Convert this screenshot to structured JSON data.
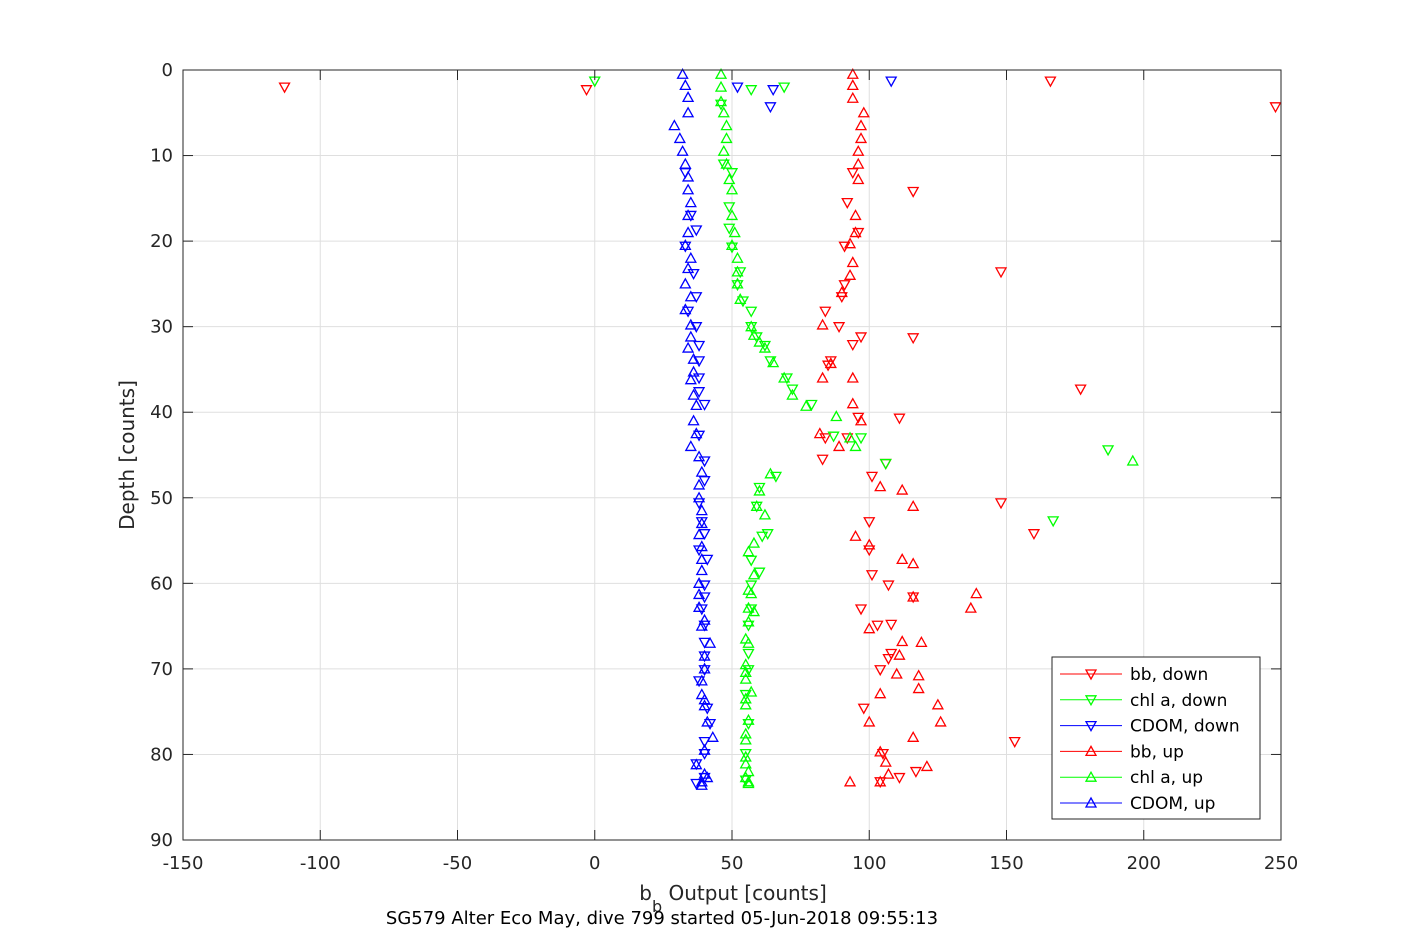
{
  "chart_data": {
    "type": "scatter",
    "xlabel": "b",
    "xlabel_sub": "b",
    "xlabel_rest": " Output [counts]",
    "ylabel": "Depth [counts]",
    "caption": "SG579 Alter Eco May, dive 799 started 05-Jun-2018 09:55:13",
    "xlim": [
      -150,
      250
    ],
    "ylim": [
      0,
      90
    ],
    "y_reversed": true,
    "grid": true,
    "legend_position": "bottom-right",
    "x_ticks": [
      "-150",
      "-100",
      "-50",
      "0",
      "50",
      "100",
      "150",
      "200",
      "250"
    ],
    "y_ticks": [
      "0",
      "10",
      "20",
      "30",
      "40",
      "50",
      "60",
      "70",
      "80",
      "90"
    ],
    "series": [
      {
        "name": "bb, down",
        "color": "#ff0000",
        "marker": "triangle-down",
        "points": [
          [
            -113,
            2
          ],
          [
            -3,
            2.3
          ],
          [
            166,
            1.3
          ],
          [
            248,
            4.3
          ],
          [
            94,
            12
          ],
          [
            116,
            14.2
          ],
          [
            92,
            15.5
          ],
          [
            96,
            19
          ],
          [
            91,
            20.6
          ],
          [
            148,
            23.6
          ],
          [
            91,
            25.1
          ],
          [
            90,
            26.5
          ],
          [
            84,
            28.2
          ],
          [
            89,
            30
          ],
          [
            97,
            31.2
          ],
          [
            94,
            32.1
          ],
          [
            86,
            34
          ],
          [
            85,
            34.5
          ],
          [
            116,
            31.3
          ],
          [
            177,
            37.3
          ],
          [
            96,
            40.6
          ],
          [
            111,
            40.7
          ],
          [
            84,
            43
          ],
          [
            92,
            43
          ],
          [
            83,
            45.5
          ],
          [
            106,
            46
          ],
          [
            101,
            47.5
          ],
          [
            148,
            50.6
          ],
          [
            100,
            52.8
          ],
          [
            160,
            54.2
          ],
          [
            100,
            56.1
          ],
          [
            101,
            59
          ],
          [
            107,
            60.2
          ],
          [
            116,
            61.6
          ],
          [
            97,
            63
          ],
          [
            108,
            64.8
          ],
          [
            103,
            64.9
          ],
          [
            107,
            68.8
          ],
          [
            108,
            68.2
          ],
          [
            104,
            70.1
          ],
          [
            98,
            74.6
          ],
          [
            153,
            78.5
          ],
          [
            105,
            79.9
          ],
          [
            117,
            82
          ],
          [
            104,
            83.2
          ],
          [
            111,
            82.7
          ]
        ]
      },
      {
        "name": "chl a, down",
        "color": "#00ff00",
        "marker": "triangle-down",
        "points": [
          [
            0,
            1.3
          ],
          [
            69,
            2
          ],
          [
            57,
            2.3
          ],
          [
            46,
            4
          ],
          [
            47,
            11
          ],
          [
            50,
            12
          ],
          [
            49,
            16
          ],
          [
            49,
            18.5
          ],
          [
            50,
            20.7
          ],
          [
            53,
            23.6
          ],
          [
            52,
            25.1
          ],
          [
            54,
            27
          ],
          [
            57,
            28.2
          ],
          [
            57,
            30
          ],
          [
            59,
            31.2
          ],
          [
            62,
            32.2
          ],
          [
            64,
            34
          ],
          [
            70,
            36
          ],
          [
            72,
            37.3
          ],
          [
            79,
            39.1
          ],
          [
            87,
            42.8
          ],
          [
            97,
            43
          ],
          [
            106,
            46
          ],
          [
            66,
            47.5
          ],
          [
            60,
            48.8
          ],
          [
            59,
            51
          ],
          [
            63,
            54.2
          ],
          [
            61,
            54.5
          ],
          [
            57,
            57.3
          ],
          [
            60,
            58.7
          ],
          [
            57,
            60.2
          ],
          [
            57,
            63
          ],
          [
            56,
            64.9
          ],
          [
            56,
            68.2
          ],
          [
            56,
            70.1
          ],
          [
            55,
            73
          ],
          [
            56,
            76.4
          ],
          [
            55,
            79.9
          ],
          [
            55,
            83
          ],
          [
            187,
            44.4
          ],
          [
            167,
            52.7
          ]
        ]
      },
      {
        "name": "CDOM, down",
        "color": "#0000ff",
        "marker": "triangle-down",
        "points": [
          [
            108,
            1.3
          ],
          [
            52,
            2
          ],
          [
            65,
            2.3
          ],
          [
            64,
            4.3
          ],
          [
            33,
            12
          ],
          [
            35,
            17
          ],
          [
            37,
            18.7
          ],
          [
            33,
            20.6
          ],
          [
            36,
            23.8
          ],
          [
            37,
            26.5
          ],
          [
            34,
            28.2
          ],
          [
            37,
            30
          ],
          [
            38,
            32.2
          ],
          [
            38,
            34
          ],
          [
            38,
            36
          ],
          [
            38,
            37.6
          ],
          [
            40,
            39.1
          ],
          [
            38,
            42.7
          ],
          [
            40,
            45.7
          ],
          [
            40,
            48
          ],
          [
            38,
            50.6
          ],
          [
            39,
            52.8
          ],
          [
            40,
            54.2
          ],
          [
            38,
            56.1
          ],
          [
            41,
            57.2
          ],
          [
            40,
            60.2
          ],
          [
            40,
            61.6
          ],
          [
            39,
            63
          ],
          [
            40,
            64.9
          ],
          [
            40,
            66.9
          ],
          [
            40,
            68.5
          ],
          [
            40,
            70.1
          ],
          [
            38,
            71.4
          ],
          [
            41,
            74.6
          ],
          [
            42,
            76.4
          ],
          [
            40,
            78.5
          ],
          [
            40,
            79.9
          ],
          [
            37,
            81.1
          ],
          [
            40,
            82.7
          ],
          [
            37,
            83.4
          ]
        ]
      },
      {
        "name": "bb, up",
        "color": "#ff0000",
        "marker": "triangle-up",
        "points": [
          [
            94,
            0.5
          ],
          [
            94,
            1.8
          ],
          [
            94,
            3.3
          ],
          [
            98,
            5
          ],
          [
            97,
            6.5
          ],
          [
            97,
            8
          ],
          [
            96,
            9.5
          ],
          [
            96,
            11
          ],
          [
            96,
            12.8
          ],
          [
            95,
            17
          ],
          [
            95,
            19
          ],
          [
            93,
            20.3
          ],
          [
            94,
            22.5
          ],
          [
            93,
            24
          ],
          [
            90,
            26
          ],
          [
            83,
            29.8
          ],
          [
            86,
            34.3
          ],
          [
            83,
            36
          ],
          [
            94,
            36
          ],
          [
            94,
            39
          ],
          [
            97,
            41
          ],
          [
            82,
            42.5
          ],
          [
            89,
            44
          ],
          [
            104,
            48.7
          ],
          [
            112,
            49.1
          ],
          [
            116,
            51
          ],
          [
            95,
            54.5
          ],
          [
            100,
            55.5
          ],
          [
            112,
            57.2
          ],
          [
            116,
            57.7
          ],
          [
            139,
            61.2
          ],
          [
            137,
            62.9
          ],
          [
            116,
            61.6
          ],
          [
            100,
            65.3
          ],
          [
            112,
            66.8
          ],
          [
            119,
            66.9
          ],
          [
            111,
            68.4
          ],
          [
            110,
            70.6
          ],
          [
            118,
            70.8
          ],
          [
            118,
            72.3
          ],
          [
            104,
            72.9
          ],
          [
            125,
            74.2
          ],
          [
            126,
            76.2
          ],
          [
            100,
            76.2
          ],
          [
            116,
            78
          ],
          [
            104,
            79.7
          ],
          [
            106,
            80.9
          ],
          [
            121,
            81.4
          ],
          [
            107,
            82.3
          ],
          [
            93,
            83.2
          ],
          [
            104,
            83.2
          ]
        ]
      },
      {
        "name": "chl a, up",
        "color": "#00ff00",
        "marker": "triangle-up",
        "points": [
          [
            46,
            0.5
          ],
          [
            46,
            2
          ],
          [
            46,
            3.7
          ],
          [
            47,
            5
          ],
          [
            48,
            6.5
          ],
          [
            48,
            8
          ],
          [
            47,
            9.5
          ],
          [
            48,
            11
          ],
          [
            49,
            12.8
          ],
          [
            50,
            14
          ],
          [
            50,
            17
          ],
          [
            51,
            19
          ],
          [
            50,
            20.5
          ],
          [
            52,
            22
          ],
          [
            52,
            23.6
          ],
          [
            52,
            25
          ],
          [
            53,
            26.8
          ],
          [
            57,
            30
          ],
          [
            58,
            31
          ],
          [
            60,
            31.8
          ],
          [
            62,
            32.5
          ],
          [
            65,
            34.2
          ],
          [
            69,
            36
          ],
          [
            72,
            38
          ],
          [
            77,
            39.3
          ],
          [
            88,
            40.5
          ],
          [
            93,
            43
          ],
          [
            95,
            44
          ],
          [
            196,
            45.7
          ],
          [
            64,
            47.2
          ],
          [
            60,
            49.2
          ],
          [
            59,
            51
          ],
          [
            62,
            52
          ],
          [
            58,
            55.3
          ],
          [
            56,
            56.3
          ],
          [
            58,
            59
          ],
          [
            56,
            60.8
          ],
          [
            57,
            61.2
          ],
          [
            56,
            62.9
          ],
          [
            58,
            63.3
          ],
          [
            56,
            64.5
          ],
          [
            55,
            66.5
          ],
          [
            56,
            67
          ],
          [
            55,
            69.5
          ],
          [
            55,
            70.4
          ],
          [
            55,
            71.2
          ],
          [
            57,
            72.7
          ],
          [
            55,
            73.5
          ],
          [
            55,
            74.2
          ],
          [
            56,
            76
          ],
          [
            55,
            77.6
          ],
          [
            55,
            78.3
          ],
          [
            55,
            80.3
          ],
          [
            55,
            81.1
          ],
          [
            56,
            82
          ],
          [
            55,
            82.7
          ],
          [
            56,
            83.2
          ],
          [
            56,
            83.4
          ]
        ]
      },
      {
        "name": "CDOM, up",
        "color": "#0000ff",
        "marker": "triangle-up",
        "points": [
          [
            32,
            0.5
          ],
          [
            33,
            1.8
          ],
          [
            34,
            3.2
          ],
          [
            34,
            5
          ],
          [
            29,
            6.5
          ],
          [
            31,
            8
          ],
          [
            32,
            9.5
          ],
          [
            33,
            11
          ],
          [
            34,
            12.5
          ],
          [
            34,
            14
          ],
          [
            35,
            15.5
          ],
          [
            34,
            17
          ],
          [
            34,
            19
          ],
          [
            33,
            20.5
          ],
          [
            35,
            22
          ],
          [
            34,
            23.2
          ],
          [
            33,
            25
          ],
          [
            35,
            26.5
          ],
          [
            33,
            28
          ],
          [
            35,
            29.8
          ],
          [
            35,
            31.2
          ],
          [
            34,
            32.5
          ],
          [
            36,
            33.8
          ],
          [
            36,
            35.3
          ],
          [
            35,
            36.2
          ],
          [
            36,
            38
          ],
          [
            37,
            39.2
          ],
          [
            36,
            41
          ],
          [
            37,
            42.5
          ],
          [
            35,
            44
          ],
          [
            38,
            45.2
          ],
          [
            39,
            47
          ],
          [
            38,
            48.5
          ],
          [
            38,
            50
          ],
          [
            39,
            51.5
          ],
          [
            39,
            53
          ],
          [
            38,
            54.3
          ],
          [
            39,
            55.7
          ],
          [
            39,
            57.2
          ],
          [
            39,
            58.5
          ],
          [
            38,
            60
          ],
          [
            38,
            61.3
          ],
          [
            38,
            62.8
          ],
          [
            40,
            64.3
          ],
          [
            39,
            65
          ],
          [
            42,
            67
          ],
          [
            40,
            68.5
          ],
          [
            40,
            70
          ],
          [
            39,
            71.4
          ],
          [
            39,
            73
          ],
          [
            40,
            73.6
          ],
          [
            40,
            74.3
          ],
          [
            41,
            76.2
          ],
          [
            43,
            78
          ],
          [
            40,
            79.5
          ],
          [
            37,
            81.2
          ],
          [
            40,
            82.3
          ],
          [
            41,
            82.7
          ],
          [
            39,
            83.2
          ],
          [
            39,
            83.6
          ]
        ]
      }
    ]
  }
}
